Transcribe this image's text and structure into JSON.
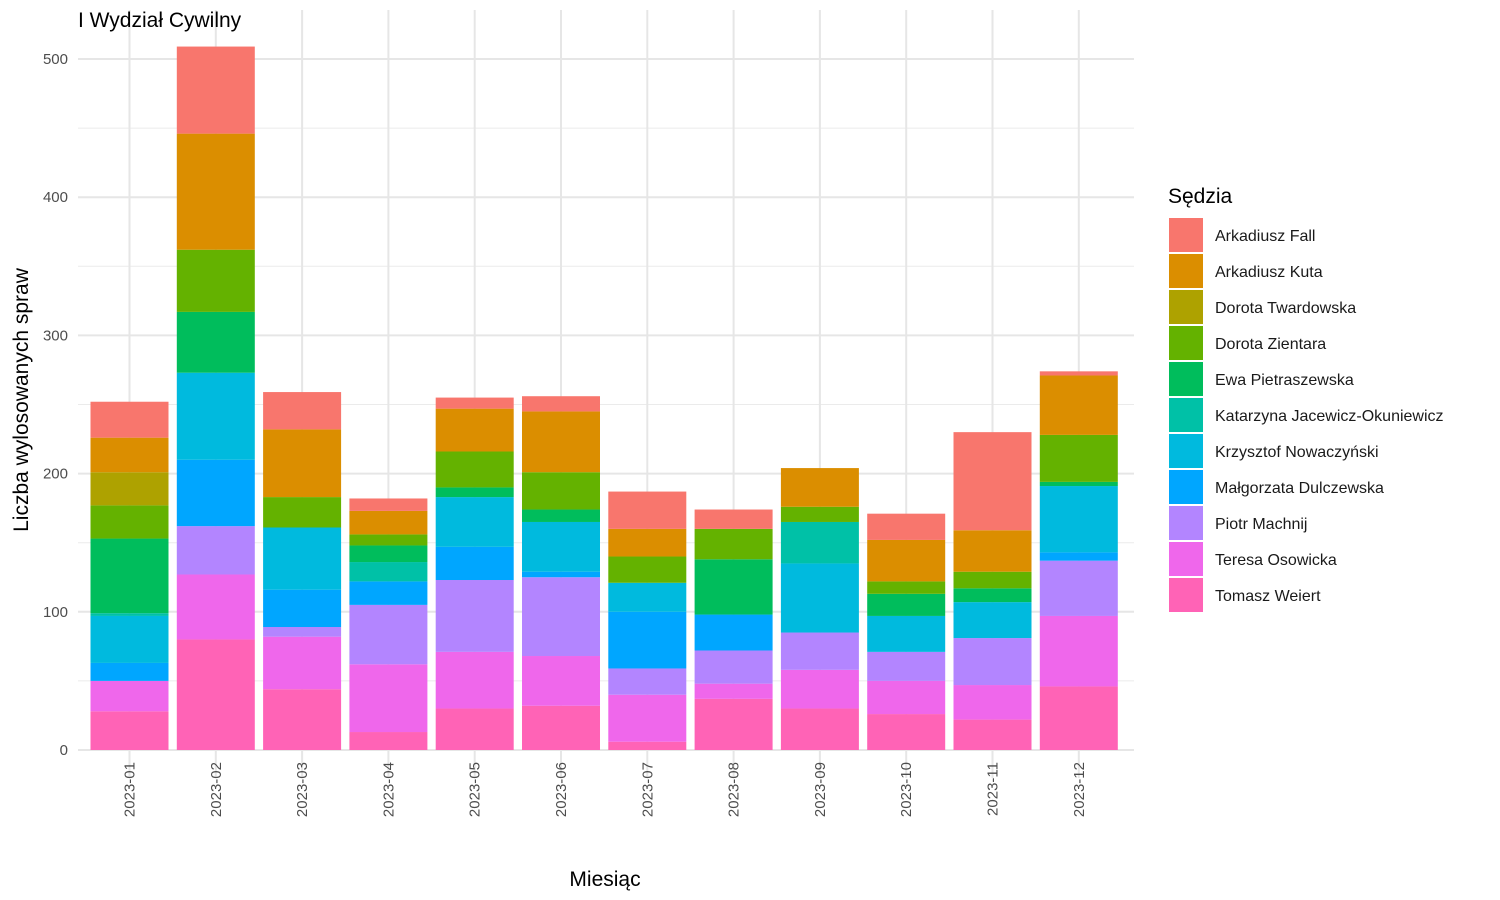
{
  "chart_data": {
    "type": "bar",
    "stacked": true,
    "title": "I Wydział Cywilny",
    "xlabel": "Miesiąc",
    "ylabel": "Liczba wylosowanych spraw",
    "ylim": [
      0,
      520
    ],
    "yticks": [
      0,
      100,
      200,
      300,
      400,
      500
    ],
    "grid": true,
    "legend": {
      "title": "Sędzia",
      "position": "right"
    },
    "categories": [
      "2023-01",
      "2023-02",
      "2023-03",
      "2023-04",
      "2023-05",
      "2023-06",
      "2023-07",
      "2023-08",
      "2023-09",
      "2023-10",
      "2023-11",
      "2023-12"
    ],
    "series": [
      {
        "name": "Arkadiusz Fall",
        "color": "#F8766D",
        "values": [
          26,
          63,
          27,
          9,
          8,
          11,
          27,
          14,
          0,
          19,
          71,
          3
        ]
      },
      {
        "name": "Arkadiusz Kuta",
        "color": "#DB8E00",
        "values": [
          25,
          84,
          49,
          17,
          31,
          44,
          20,
          0,
          28,
          30,
          30,
          43
        ]
      },
      {
        "name": "Dorota Twardowska",
        "color": "#AEA200",
        "values": [
          24,
          0,
          0,
          0,
          0,
          0,
          0,
          0,
          0,
          0,
          0,
          0
        ]
      },
      {
        "name": "Dorota Zientara",
        "color": "#64B200",
        "values": [
          24,
          45,
          22,
          8,
          26,
          27,
          19,
          22,
          11,
          9,
          12,
          34
        ]
      },
      {
        "name": "Ewa Pietraszewska",
        "color": "#00BD5C",
        "values": [
          54,
          44,
          0,
          12,
          7,
          9,
          0,
          40,
          0,
          16,
          10,
          3
        ]
      },
      {
        "name": "Katarzyna Jacewicz-Okuniewicz",
        "color": "#00C1A7",
        "values": [
          2,
          0,
          0,
          14,
          0,
          0,
          0,
          0,
          30,
          0,
          0,
          0
        ]
      },
      {
        "name": "Krzysztof Nowaczyński",
        "color": "#00BADE",
        "values": [
          34,
          63,
          45,
          0,
          36,
          36,
          21,
          0,
          50,
          26,
          26,
          48
        ]
      },
      {
        "name": "Małgorzata Dulczewska",
        "color": "#00A6FF",
        "values": [
          13,
          48,
          27,
          17,
          24,
          4,
          41,
          26,
          0,
          0,
          0,
          6
        ]
      },
      {
        "name": "Piotr Machnij",
        "color": "#B385FF",
        "values": [
          0,
          35,
          7,
          43,
          52,
          57,
          19,
          24,
          27,
          21,
          34,
          40
        ]
      },
      {
        "name": "Teresa Osowicka",
        "color": "#EF67EB",
        "values": [
          22,
          47,
          38,
          49,
          41,
          36,
          34,
          11,
          28,
          24,
          25,
          51
        ]
      },
      {
        "name": "Tomasz Weiert",
        "color": "#FF63B6",
        "values": [
          28,
          80,
          44,
          13,
          30,
          32,
          6,
          37,
          30,
          26,
          22,
          46
        ]
      }
    ]
  }
}
